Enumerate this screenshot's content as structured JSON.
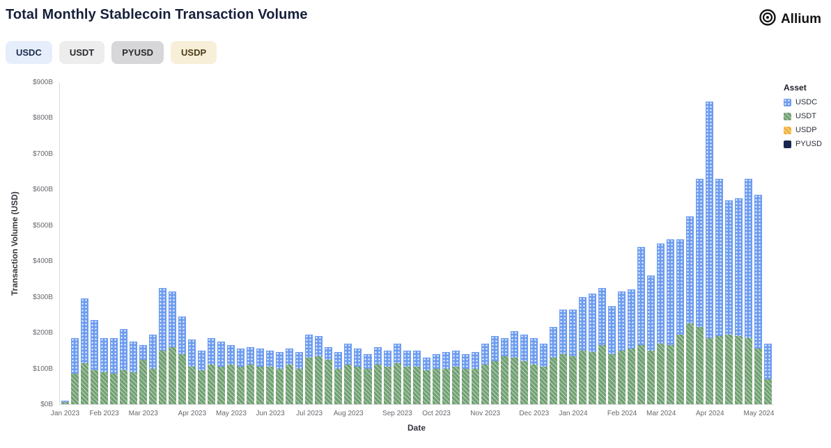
{
  "header": {
    "title": "Total Monthly Stablecoin Transaction Volume",
    "brand": "Allium"
  },
  "filters": [
    {
      "label": "USDC",
      "bg": "#e6eefc",
      "fg": "#1c2b4a"
    },
    {
      "label": "USDT",
      "bg": "#ededee",
      "fg": "#2a2a2e"
    },
    {
      "label": "PYUSD",
      "bg": "#d7d7d9",
      "fg": "#2a2a2e"
    },
    {
      "label": "USDP",
      "bg": "#f7efd8",
      "fg": "#4a3c1a"
    }
  ],
  "legend": {
    "title": "Asset",
    "items": [
      {
        "label": "USDC",
        "color": "#6d9cf0",
        "pattern": "dots"
      },
      {
        "label": "USDT",
        "color": "#72a173",
        "pattern": "hatch"
      },
      {
        "label": "USDP",
        "color": "#f0b33c",
        "pattern": "hatch"
      },
      {
        "label": "PYUSD",
        "color": "#19264f",
        "pattern": "solid"
      }
    ]
  },
  "chart_data": {
    "type": "bar",
    "stacked": true,
    "title": "Total Monthly Stablecoin Transaction Volume",
    "xlabel": "Date",
    "ylabel": "Transaction Volume (USD)",
    "x_unit": "week",
    "ylim": [
      0,
      900
    ],
    "y_ticks": [
      "$0B",
      "$100B",
      "$200B",
      "$300B",
      "$400B",
      "$500B",
      "$600B",
      "$700B",
      "$800B",
      "$900B"
    ],
    "grid": false,
    "legend_position": "right",
    "series": [
      {
        "name": "USDT",
        "color": "#72a173",
        "pattern": "hatch",
        "values": [
          5,
          85,
          115,
          95,
          90,
          85,
          95,
          90,
          125,
          100,
          150,
          160,
          140,
          105,
          95,
          110,
          105,
          110,
          105,
          110,
          105,
          105,
          100,
          110,
          100,
          130,
          135,
          125,
          100,
          110,
          105,
          100,
          110,
          105,
          115,
          105,
          105,
          95,
          100,
          100,
          105,
          100,
          100,
          110,
          120,
          135,
          130,
          120,
          110,
          105,
          130,
          140,
          135,
          150,
          145,
          165,
          140,
          150,
          155,
          165,
          150,
          170,
          165,
          195,
          225,
          215,
          185,
          190,
          195,
          190,
          185,
          155,
          70
        ]
      },
      {
        "name": "USDC",
        "color": "#6d9cf0",
        "pattern": "dots",
        "values": [
          5,
          100,
          180,
          140,
          95,
          100,
          115,
          85,
          40,
          95,
          175,
          155,
          105,
          75,
          55,
          75,
          70,
          55,
          50,
          50,
          50,
          45,
          45,
          45,
          45,
          65,
          55,
          35,
          45,
          60,
          50,
          40,
          50,
          45,
          55,
          45,
          45,
          35,
          40,
          45,
          45,
          40,
          45,
          60,
          70,
          50,
          75,
          75,
          75,
          65,
          85,
          125,
          130,
          150,
          165,
          160,
          135,
          165,
          165,
          275,
          210,
          280,
          295,
          265,
          300,
          415,
          660,
          440,
          375,
          385,
          445,
          430,
          100
        ]
      }
    ],
    "month_ticks": [
      {
        "label": "Jan 2023",
        "index": 0
      },
      {
        "label": "Feb 2023",
        "index": 4
      },
      {
        "label": "Mar 2023",
        "index": 8
      },
      {
        "label": "Apr 2023",
        "index": 13
      },
      {
        "label": "May 2023",
        "index": 17
      },
      {
        "label": "Jun 2023",
        "index": 21
      },
      {
        "label": "Jul 2023",
        "index": 25
      },
      {
        "label": "Aug 2023",
        "index": 29
      },
      {
        "label": "Sep 2023",
        "index": 34
      },
      {
        "label": "Oct 2023",
        "index": 38
      },
      {
        "label": "Nov 2023",
        "index": 43
      },
      {
        "label": "Dec 2023",
        "index": 48
      },
      {
        "label": "Jan 2024",
        "index": 52
      },
      {
        "label": "Feb 2024",
        "index": 57
      },
      {
        "label": "Mar 2024",
        "index": 61
      },
      {
        "label": "Apr 2024",
        "index": 66
      },
      {
        "label": "May 2024",
        "index": 71
      }
    ]
  }
}
